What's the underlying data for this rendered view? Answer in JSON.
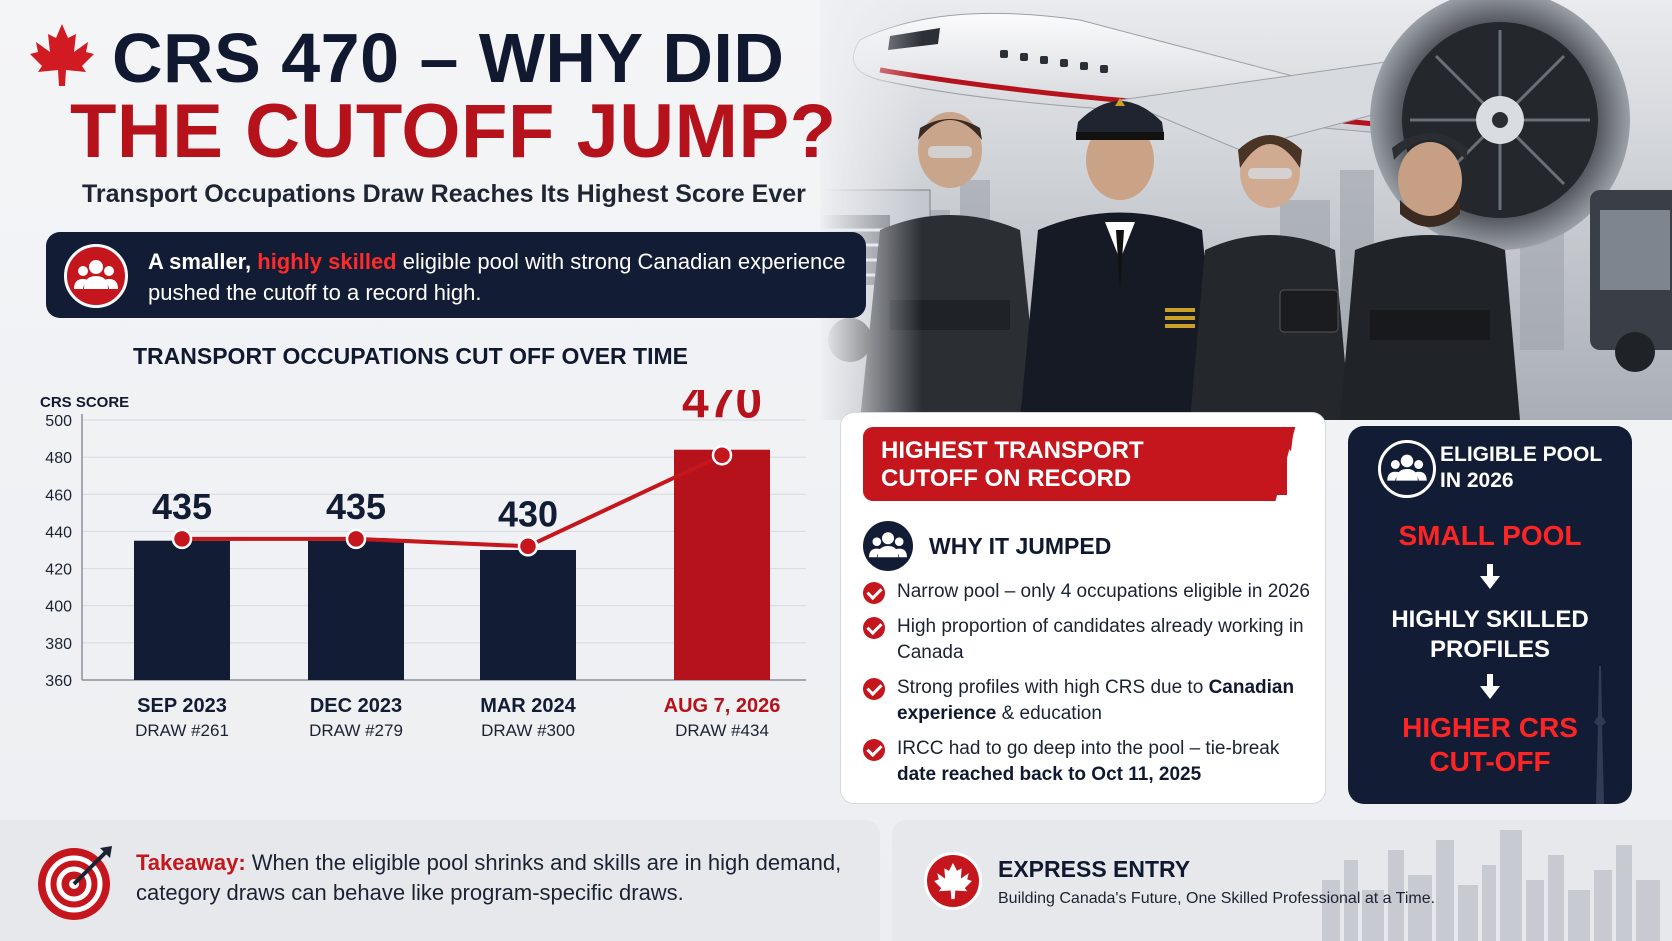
{
  "header": {
    "title_line1": "CRS 470 – WHY DID",
    "title_line2": "THE CUTOFF JUMP?",
    "subtitle": "Transport Occupations Draw Reaches Its Highest Score Ever"
  },
  "banner": {
    "text_a": "A smaller, ",
    "text_highlight": "highly skilled",
    "text_b": " eligible pool with strong Canadian experience pushed the cutoff to a record high."
  },
  "chart_data": {
    "type": "bar",
    "title": "TRANSPORT OCCUPATIONS CUT OFF OVER TIME",
    "ylabel": "CRS SCORE",
    "xlabel": "",
    "ylim": [
      360,
      500
    ],
    "yticks": [
      360,
      380,
      400,
      420,
      440,
      460,
      480,
      500
    ],
    "grid": true,
    "categories": [
      "SEP 2023",
      "DEC 2023",
      "MAR 2024",
      "AUG 7, 2026"
    ],
    "draws": [
      "DRAW #261",
      "DRAW #279",
      "DRAW #300",
      "DRAW #434"
    ],
    "values": [
      435,
      435,
      430,
      470
    ],
    "value_labels": [
      "435",
      "435",
      "430",
      "470"
    ],
    "bar_colors": [
      "#121d35",
      "#121d35",
      "#121d35",
      "#b5121b"
    ],
    "line_color": "#c4161c"
  },
  "why_panel": {
    "badge": "HIGHEST TRANSPORT CUTOFF ON RECORD",
    "heading": "WHY IT JUMPED",
    "items": [
      {
        "text": "Narrow pool – only 4 occupations eligible in 2026",
        "bold": ""
      },
      {
        "text": "High proportion of candidates already working in Canada",
        "bold": ""
      },
      {
        "text": "Strong profiles with high CRS due to ",
        "bold": "Canadian experience",
        "text_after": " & education"
      },
      {
        "text": "IRCC had to go deep into the pool – tie-break ",
        "bold": "date reached back to Oct 11, 2025",
        "text_after": ""
      }
    ]
  },
  "pool_panel": {
    "heading_line1": "ELIGIBLE POOL",
    "heading_line2": "IN 2026",
    "step1": "SMALL POOL",
    "step2_line1": "HIGHLY SKILLED",
    "step2_line2": "PROFILES",
    "step3_line1": "HIGHER CRS",
    "step3_line2": "CUT-OFF"
  },
  "footer": {
    "takeaway_label": "Takeaway:",
    "takeaway_text": " When the eligible pool shrinks and skills are in high demand, category draws can behave like program-specific draws.",
    "ee_title": "EXPRESS ENTRY",
    "ee_subtitle": "Building Canada's Future, One Skilled Professional at a Time."
  },
  "colors": {
    "navy": "#121d35",
    "red": "#c4161c",
    "dark_red": "#b5121b"
  },
  "icons": {
    "title": "maple-leaf-icon",
    "banner": "people-group-icon",
    "record": "trending-up-chart-icon",
    "why": "people-group-icon",
    "pool": "people-group-icon",
    "takeaway": "target-arrow-icon",
    "express_entry": "maple-leaf-icon"
  }
}
